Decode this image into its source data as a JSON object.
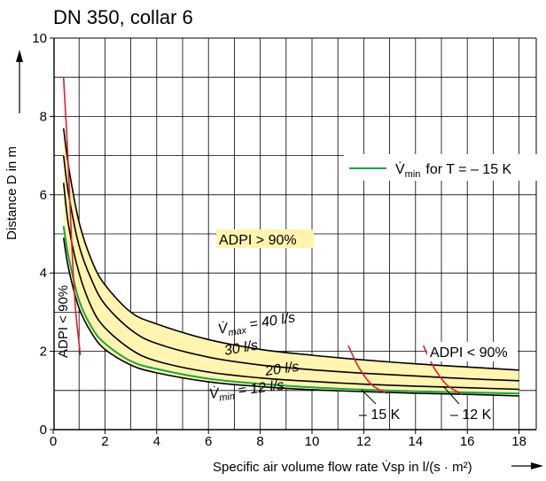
{
  "chart_data": {
    "type": "line",
    "title": "DN 350, collar 6",
    "xlabel": "Specific air volume flow rate V̇sp in l/(s · m²)",
    "ylabel": "Distance D in m",
    "xlim": [
      0,
      18
    ],
    "ylim": [
      0,
      10
    ],
    "x_ticks": [
      "0",
      "2",
      "4",
      "6",
      "8",
      "10",
      "12",
      "14",
      "16",
      "18"
    ],
    "y_ticks": [
      "0",
      "2",
      "4",
      "6",
      "8",
      "10"
    ],
    "grid": true,
    "grid_step_x": 1,
    "grid_step_y": 1,
    "colors": {
      "black_curves": "#000000",
      "vmin_curve": "#1aa34a",
      "adpi_limit": "#e0202a",
      "band_fill": "#fff4b0",
      "label_bg": "#fff4b0"
    },
    "series": [
      {
        "name": "V̇max = 40 l/s",
        "color": "#000000",
        "x": [
          0.4,
          0.6,
          1,
          1.5,
          2,
          3,
          4,
          6,
          8,
          10,
          12,
          14,
          16,
          18
        ],
        "y": [
          7.7,
          6.7,
          5.3,
          4.3,
          3.7,
          3.0,
          2.7,
          2.3,
          2.05,
          1.9,
          1.78,
          1.68,
          1.6,
          1.52
        ]
      },
      {
        "name": "30 l/s",
        "color": "#000000",
        "x": [
          0.4,
          0.6,
          1,
          1.5,
          2,
          3,
          4,
          6,
          8,
          10,
          12,
          14,
          16,
          18
        ],
        "y": [
          7.0,
          6.0,
          4.7,
          3.8,
          3.2,
          2.55,
          2.2,
          1.85,
          1.65,
          1.53,
          1.44,
          1.37,
          1.3,
          1.25
        ]
      },
      {
        "name": "20 l/s",
        "color": "#000000",
        "x": [
          0.4,
          0.6,
          1,
          1.5,
          2,
          3,
          4,
          6,
          8,
          10,
          12,
          14,
          16,
          18
        ],
        "y": [
          6.3,
          5.2,
          4.0,
          3.1,
          2.6,
          2.05,
          1.75,
          1.47,
          1.32,
          1.23,
          1.16,
          1.11,
          1.07,
          1.03
        ]
      },
      {
        "name": "V̇min = 12 l/s",
        "color": "#000000",
        "x": [
          0.4,
          0.6,
          1,
          1.5,
          2,
          3,
          4,
          6,
          8,
          10,
          12,
          14,
          16,
          18
        ],
        "y": [
          4.9,
          4.1,
          3.1,
          2.45,
          2.05,
          1.65,
          1.45,
          1.22,
          1.1,
          1.02,
          0.97,
          0.93,
          0.9,
          0.86
        ]
      },
      {
        "name": "V̇min for T = – 15 K",
        "color": "#1aa34a",
        "x": [
          0.4,
          0.6,
          1,
          1.5,
          2,
          3,
          4,
          6,
          8,
          10,
          12,
          14,
          16,
          18
        ],
        "y": [
          5.2,
          4.4,
          3.3,
          2.6,
          2.2,
          1.75,
          1.55,
          1.3,
          1.17,
          1.08,
          1.02,
          0.98,
          0.95,
          0.92
        ]
      }
    ],
    "limit_lines": [
      {
        "label": "ADPI < 90% (left)",
        "color": "#e0202a",
        "x": [
          0.4,
          0.55,
          0.7,
          0.85,
          1.05
        ],
        "y": [
          9.0,
          7.2,
          5.0,
          3.2,
          1.9
        ]
      },
      {
        "label": "– 15 K",
        "color": "#e0202a",
        "x": [
          11.4,
          11.8,
          12.3,
          12.9
        ],
        "y": [
          2.15,
          1.6,
          1.15,
          0.92
        ]
      },
      {
        "label": "– 12 K",
        "color": "#e0202a",
        "x": [
          14.3,
          14.7,
          15.2,
          15.8
        ],
        "y": [
          2.15,
          1.6,
          1.15,
          0.9
        ]
      }
    ],
    "legend": {
      "position": "top-right",
      "symbol": "V̇",
      "sub": "min",
      "text": "for   T = – 15 K"
    },
    "annotations": {
      "adpi_gt": "ADPI > 90%",
      "adpi_lt_left": "ADPI < 90%",
      "adpi_lt_right": "ADPI < 90%",
      "vmax": {
        "symbol": "V̇",
        "sub": "max",
        "text": " = 40 l/s"
      },
      "s30": "30 l/s",
      "s20": "20 l/s",
      "vmin": {
        "symbol": "V̇",
        "sub": "min",
        "text": " = 12 l/s"
      },
      "k15": "– 15 K",
      "k12": "– 12 K"
    }
  }
}
